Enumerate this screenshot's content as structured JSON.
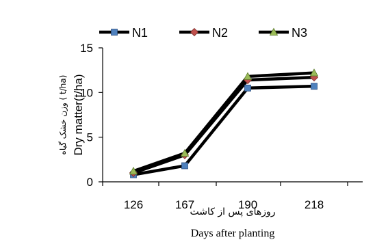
{
  "chart_data": {
    "type": "line",
    "x": [
      126,
      167,
      190,
      218
    ],
    "categories": [
      "126",
      "167",
      "190",
      "218"
    ],
    "series": [
      {
        "name": "N1",
        "values": [
          0.8,
          1.8,
          10.5,
          10.7
        ],
        "marker": "square",
        "marker_color": "#4f81bd"
      },
      {
        "name": "N2",
        "values": [
          1.0,
          3.0,
          11.4,
          11.7
        ],
        "marker": "diamond",
        "marker_color": "#c0504d"
      },
      {
        "name": "N3",
        "values": [
          1.2,
          3.2,
          11.8,
          12.2
        ],
        "marker": "triangle",
        "marker_color": "#9bbb59"
      }
    ],
    "ylim": [
      0,
      15
    ],
    "yticks": [
      "0",
      "5",
      "10",
      "15"
    ],
    "ylabel_fa": "وزن خشک گیاه ( t/ha)",
    "ylabel_en": "Dry matter(t/ha)",
    "xlabel_fa": "روزهای پس از کاشت",
    "xlabel_en": "Days after planting",
    "legend_position": "top",
    "grid": false,
    "line_color": "#000000"
  }
}
